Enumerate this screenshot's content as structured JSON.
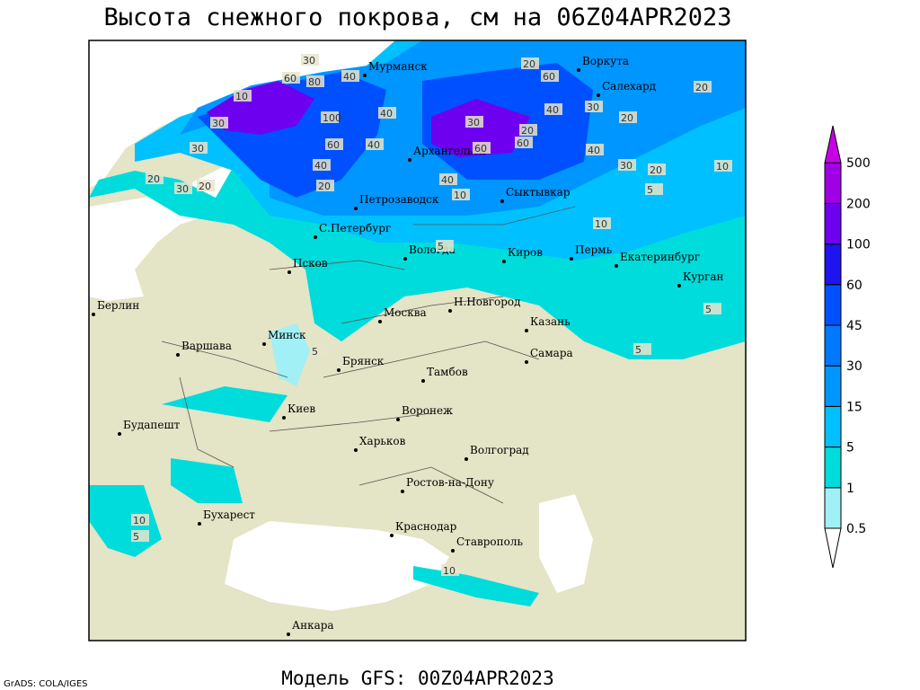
{
  "title": "Высота снежного покрова, см на 06Z04APR2023",
  "footer": "Модель GFS: 00Z04APR2023",
  "credit": "GrADS: COLA/IGES",
  "legend": {
    "levels": [
      0.5,
      1,
      5,
      15,
      30,
      45,
      60,
      100,
      200,
      500
    ],
    "colors": [
      "#ffffff",
      "#a0f0f5",
      "#00dcdc",
      "#00c0ff",
      "#0096ff",
      "#0078ff",
      "#0050ff",
      "#1e14f0",
      "#6e00f0",
      "#a000e6",
      "#c800e6"
    ]
  },
  "cities": [
    "Мурманск",
    "Воркута",
    "Салехард",
    "Архангельск",
    "Сыктывкар",
    "Петрозаводск",
    "С.Петербург",
    "Вологда",
    "Киров",
    "Пермь",
    "Екатеринбург",
    "Курган",
    "Псков",
    "Берлин",
    "Москва",
    "Н.Новгород",
    "Казань",
    "Варшава",
    "Минск",
    "Самара",
    "Брянск",
    "Тамбов",
    "Киев",
    "Воронеж",
    "Будапешт",
    "Харьков",
    "Волгоград",
    "Ростов-на-Дону",
    "Бухарест",
    "Краснодар",
    "Ставрополь",
    "Анкара"
  ],
  "contour_labels": [
    "30",
    "60",
    "80",
    "40",
    "20",
    "60",
    "30",
    "10",
    "30",
    "20",
    "40",
    "20",
    "100",
    "60",
    "40",
    "40",
    "20",
    "40",
    "30",
    "60",
    "60",
    "40",
    "30",
    "20",
    "30",
    "20",
    "40",
    "20",
    "30",
    "5",
    "10",
    "20",
    "10",
    "5",
    "10",
    "5",
    "5",
    "5",
    "10",
    "5",
    "10"
  ]
}
